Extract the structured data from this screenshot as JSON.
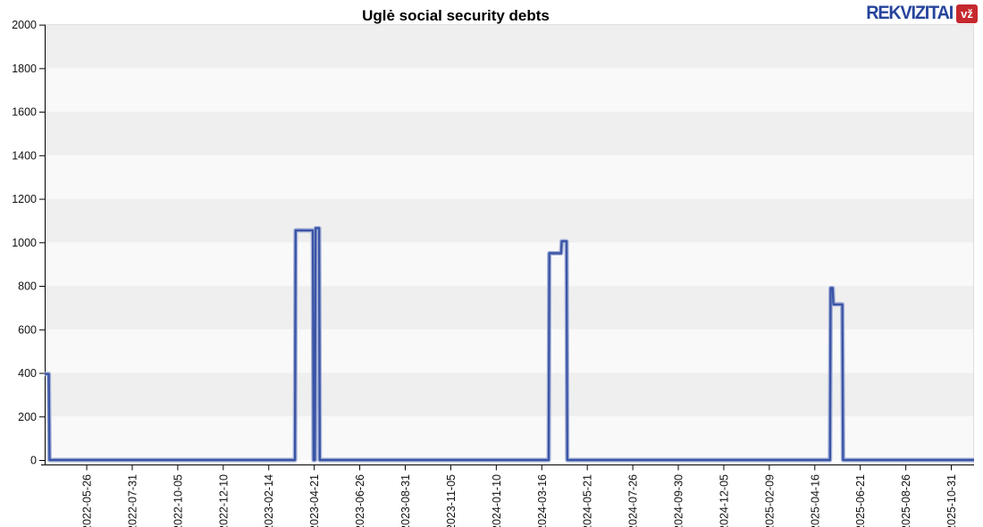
{
  "header": {
    "logo": {
      "brand": "REKVIZITAI",
      "badge": "vž",
      "brand_color": "#26449C",
      "badge_bg": "#C5282E",
      "badge_fg": "#FFFFFF"
    }
  },
  "chart_data": {
    "type": "line",
    "title": "Uglė social security debts",
    "xlabel": "",
    "ylabel": "",
    "ylim": [
      0,
      2000
    ],
    "y_ticks": [
      0,
      200,
      400,
      600,
      800,
      1000,
      1200,
      1400,
      1600,
      1800,
      2000
    ],
    "x_tick_labels": [
      "2022-05-26",
      "2022-07-31",
      "2022-10-05",
      "2022-12-10",
      "2023-02-14",
      "2023-04-21",
      "2023-06-26",
      "2023-08-31",
      "2023-11-05",
      "2024-01-10",
      "2024-03-16",
      "2024-05-21",
      "2024-07-26",
      "2024-09-30",
      "2024-12-05",
      "2025-02-09",
      "2025-04-16",
      "2025-06-21",
      "2025-08-26",
      "2025-10-31"
    ],
    "x_domain": [
      "2022-03-26",
      "2025-12-03"
    ],
    "grid": "horizontal-bands",
    "legend": "none",
    "band_colors": [
      "#F9F9F9",
      "#EFEFEF"
    ],
    "line_color": "#3A55A6",
    "line_halo_color": "#9AA7D3",
    "axis_color": "#000000",
    "border_color": "#DDDDDD",
    "tick_label_color": "#111111",
    "series": [
      {
        "name": "social-security-debt",
        "points": [
          [
            "2022-03-26",
            395
          ],
          [
            "2022-04-01",
            395
          ],
          [
            "2022-04-02",
            0
          ],
          [
            "2023-03-24",
            0
          ],
          [
            "2023-03-25",
            1055
          ],
          [
            "2023-04-19",
            1055
          ],
          [
            "2023-04-20",
            0
          ],
          [
            "2023-04-22",
            0
          ],
          [
            "2023-04-23",
            1065
          ],
          [
            "2023-04-28",
            1065
          ],
          [
            "2023-04-29",
            0
          ],
          [
            "2024-03-26",
            0
          ],
          [
            "2024-03-27",
            950
          ],
          [
            "2024-04-13",
            950
          ],
          [
            "2024-04-14",
            1005
          ],
          [
            "2024-04-21",
            1005
          ],
          [
            "2024-04-22",
            0
          ],
          [
            "2025-05-08",
            0
          ],
          [
            "2025-05-09",
            790
          ],
          [
            "2025-05-12",
            790
          ],
          [
            "2025-05-13",
            715
          ],
          [
            "2025-05-26",
            715
          ],
          [
            "2025-05-27",
            0
          ],
          [
            "2025-12-03",
            0
          ]
        ]
      }
    ]
  }
}
